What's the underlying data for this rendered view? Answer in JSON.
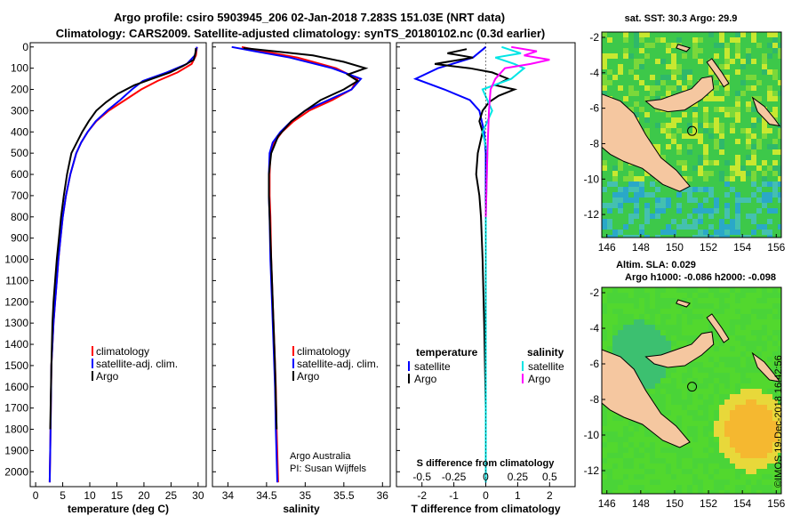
{
  "header": {
    "line1": "Argo profile: csiro 5903945_206 02-Jan-2018 7.283S 151.03E (NRT data)",
    "line2": "Climatology: CARS2009. Satellite-adjusted climatology: synTS_20180102.nc (0.3d earlier)"
  },
  "side_label": "©IMOS 19-Dec-2018 16:42:56",
  "credits": {
    "line1": "Argo Australia",
    "line2": "PI: Susan Wijffels"
  },
  "colors": {
    "climatology": "#ff0000",
    "satellite": "#0000ff",
    "argo": "#000000",
    "sat_salinity": "#00e5e5",
    "argo_salinity": "#ff00ff",
    "land": "#f5c7a0",
    "sst_green": "#33cc33",
    "sla_green": "#44dd22"
  },
  "chart_data": [
    {
      "type": "line",
      "panel": "temperature",
      "title": "",
      "xlabel": "temperature (deg C)",
      "ylabel": "",
      "xlim": [
        -1,
        31.5
      ],
      "ylim": [
        2070,
        -20
      ],
      "xticks": [
        0,
        5,
        10,
        15,
        20,
        25,
        30
      ],
      "yticks": [
        0,
        100,
        200,
        300,
        400,
        500,
        600,
        700,
        800,
        900,
        1000,
        1100,
        1200,
        1300,
        1400,
        1500,
        1600,
        1700,
        1800,
        1900,
        2000
      ],
      "legend": [
        "climatology",
        "satellite-adj. clim.",
        "Argo"
      ],
      "series": [
        {
          "name": "climatology",
          "color": "#ff0000",
          "x": [
            29.8,
            29.6,
            28.8,
            26.2,
            22.5,
            19.5,
            16.5,
            13.5,
            11.2,
            9.6,
            8.4,
            7.5,
            6.4,
            5.6,
            5.0,
            4.6,
            4.2,
            3.9,
            3.6,
            3.3,
            3.1,
            2.9,
            2.8,
            2.7,
            2.6
          ],
          "y": [
            0,
            40,
            80,
            120,
            160,
            200,
            250,
            300,
            350,
            400,
            450,
            500,
            600,
            700,
            800,
            900,
            1000,
            1100,
            1200,
            1300,
            1400,
            1500,
            1700,
            1900,
            2050
          ]
        },
        {
          "name": "satellite-adj. clim.",
          "color": "#0000ff",
          "x": [
            29.8,
            29.4,
            27.9,
            24.2,
            19.8,
            17.8,
            15.6,
            13.2,
            11.1,
            9.6,
            8.4,
            7.5,
            6.4,
            5.6,
            5.0,
            4.6,
            4.2,
            3.9,
            3.6,
            3.3,
            3.1,
            2.9,
            2.8,
            2.7,
            2.6
          ],
          "y": [
            0,
            40,
            80,
            120,
            160,
            200,
            250,
            300,
            350,
            400,
            450,
            500,
            600,
            700,
            800,
            900,
            1000,
            1100,
            1200,
            1300,
            1400,
            1500,
            1700,
            1900,
            2050
          ]
        },
        {
          "name": "Argo",
          "color": "#000000",
          "x": [
            29.6,
            29.5,
            29.2,
            27.2,
            24.8,
            21.5,
            18.2,
            15.2,
            13.0,
            11.2,
            9.8,
            8.6,
            7.6,
            6.6,
            5.8,
            5.2,
            4.7,
            4.3,
            3.9,
            3.6,
            3.3,
            3.1,
            2.9,
            2.7
          ],
          "y": [
            5,
            30,
            60,
            90,
            120,
            150,
            180,
            220,
            260,
            300,
            350,
            400,
            450,
            500,
            600,
            700,
            800,
            900,
            1000,
            1100,
            1200,
            1300,
            1500,
            1800
          ]
        }
      ]
    },
    {
      "type": "line",
      "panel": "salinity",
      "title": "",
      "xlabel": "salinity",
      "ylabel": "",
      "xlim": [
        33.8,
        36.1
      ],
      "ylim": [
        2070,
        -20
      ],
      "xticks": [
        34,
        34.5,
        35,
        35.5,
        36
      ],
      "legend": [
        "climatology",
        "satellite-adj. clim.",
        "Argo"
      ],
      "series": [
        {
          "name": "climatology",
          "color": "#ff0000",
          "x": [
            34.18,
            34.45,
            34.9,
            35.4,
            35.68,
            35.6,
            35.35,
            35.05,
            34.85,
            34.7,
            34.6,
            34.55,
            34.54,
            34.54,
            34.55,
            34.56,
            34.58,
            34.6,
            34.62,
            34.63,
            34.65
          ],
          "y": [
            0,
            20,
            50,
            100,
            150,
            200,
            250,
            300,
            350,
            400,
            450,
            500,
            600,
            700,
            800,
            1000,
            1200,
            1400,
            1600,
            1800,
            2050
          ]
        },
        {
          "name": "satellite-adj. clim.",
          "color": "#0000ff",
          "x": [
            34.05,
            34.35,
            34.8,
            35.35,
            35.72,
            35.6,
            35.3,
            35.0,
            34.82,
            34.68,
            34.58,
            34.54,
            34.53,
            34.53,
            34.54,
            34.55,
            34.57,
            34.59,
            34.61,
            34.62,
            34.64
          ],
          "y": [
            0,
            20,
            50,
            100,
            150,
            200,
            250,
            300,
            350,
            400,
            450,
            500,
            600,
            700,
            800,
            1000,
            1200,
            1400,
            1600,
            1800,
            2050
          ]
        },
        {
          "name": "Argo",
          "color": "#000000",
          "x": [
            34.2,
            34.6,
            35.1,
            35.5,
            35.78,
            35.55,
            35.68,
            35.5,
            35.2,
            35.0,
            34.82,
            34.65,
            34.56,
            34.53,
            34.53,
            34.55,
            34.57,
            34.59,
            34.61,
            34.63
          ],
          "y": [
            5,
            20,
            40,
            70,
            100,
            130,
            160,
            200,
            250,
            300,
            350,
            420,
            500,
            600,
            700,
            900,
            1100,
            1300,
            1500,
            1800
          ]
        }
      ]
    },
    {
      "type": "line",
      "panel": "difference",
      "title": "S difference from climatology",
      "xlabel": "T difference from climatology",
      "ylabel": "",
      "xlim": [
        -2.8,
        2.8
      ],
      "ylim": [
        2070,
        -20
      ],
      "xticks": [
        -2,
        -1,
        0,
        1,
        2
      ],
      "top_ticks": [
        "-0.5",
        "-0.25",
        "0",
        "0.25",
        "0.5"
      ],
      "legend_left_title": "temperature",
      "legend_right_title": "salinity",
      "legend": [
        "satellite",
        "Argo",
        "satellite",
        "Argo"
      ],
      "series": [
        {
          "name": "T satellite",
          "color": "#0000ff",
          "x": [
            0.0,
            -0.4,
            -1.5,
            -2.2,
            -1.3,
            -0.5,
            -0.2,
            -0.05,
            0.0,
            0.0,
            0.0
          ],
          "y": [
            0,
            50,
            100,
            150,
            200,
            250,
            300,
            400,
            500,
            800,
            2050
          ]
        },
        {
          "name": "T Argo",
          "color": "#000000",
          "x": [
            -0.6,
            -1.2,
            -0.4,
            -1.6,
            -0.5,
            0.2,
            0.7,
            0.3,
            0.9,
            0.4,
            0.1,
            -0.1,
            -0.2,
            -0.1,
            -0.25,
            -0.3,
            -0.2,
            -0.15,
            -0.1,
            -0.05,
            0.0
          ],
          "y": [
            10,
            30,
            50,
            80,
            100,
            120,
            150,
            180,
            200,
            230,
            260,
            300,
            350,
            400,
            500,
            600,
            700,
            800,
            1000,
            1300,
            1700
          ]
        },
        {
          "name": "S satellite",
          "color": "#00e5e5",
          "x": [
            0.5,
            1.1,
            0.3,
            0.9,
            1.2,
            0.8,
            -0.1,
            0.2,
            -0.1,
            0.05,
            0.0,
            0.0
          ],
          "y": [
            0,
            30,
            50,
            80,
            100,
            150,
            200,
            300,
            400,
            500,
            800,
            2050
          ]
        },
        {
          "name": "S Argo",
          "color": "#ff00ff",
          "x": [
            0.8,
            1.6,
            1.2,
            2.0,
            1.4,
            0.6,
            0.3,
            0.15,
            0.1,
            0.05,
            0.0
          ],
          "y": [
            0,
            20,
            40,
            60,
            80,
            100,
            150,
            200,
            300,
            500,
            800
          ]
        }
      ]
    },
    {
      "type": "heatmap",
      "panel": "sst",
      "title": "sat. SST: 30.3 Argo: 29.9",
      "xlim": [
        145.7,
        156.3
      ],
      "ylim": [
        -13.3,
        -1.7
      ],
      "xticks": [
        146,
        148,
        150,
        152,
        154,
        156
      ],
      "yticks": [
        -2,
        -4,
        -6,
        -8,
        -10,
        -12
      ]
    },
    {
      "type": "heatmap",
      "panel": "sla",
      "title": "Altim. SLA: 0.029",
      "subtitle": "Argo h1000: -0.086 h2000: -0.098",
      "xlim": [
        145.7,
        156.3
      ],
      "ylim": [
        -13.3,
        -1.7
      ],
      "xticks": [
        146,
        148,
        150,
        152,
        154,
        156
      ],
      "yticks": [
        -2,
        -4,
        -6,
        -8,
        -10,
        -12
      ]
    }
  ]
}
